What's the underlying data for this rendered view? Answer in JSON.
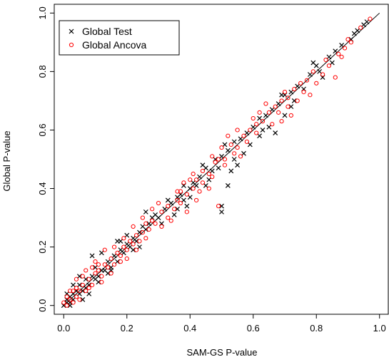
{
  "chart_data": {
    "type": "scatter",
    "title": "",
    "xlabel": "SAM-GS P-value",
    "ylabel": "Global P-value",
    "xlim": [
      -0.03,
      1.03
    ],
    "ylim": [
      -0.03,
      1.03
    ],
    "x_ticks": [
      "0.0",
      "0.2",
      "0.4",
      "0.6",
      "0.8",
      "1.0"
    ],
    "y_ticks": [
      "0.0",
      "0.2",
      "0.4",
      "0.6",
      "0.8",
      "1.0"
    ],
    "grid": false,
    "legend_position": "top-left",
    "reference_line": {
      "from": [
        0,
        0
      ],
      "to": [
        1,
        1
      ],
      "color": "#000000"
    },
    "series": [
      {
        "name": "Global Test",
        "marker": "x",
        "color": "#000000",
        "points": [
          [
            0.0,
            0.0
          ],
          [
            0.01,
            0.01
          ],
          [
            0.01,
            0.02
          ],
          [
            0.02,
            0.01
          ],
          [
            0.02,
            0.03
          ],
          [
            0.03,
            0.04
          ],
          [
            0.03,
            0.02
          ],
          [
            0.04,
            0.05
          ],
          [
            0.05,
            0.04
          ],
          [
            0.05,
            0.07
          ],
          [
            0.06,
            0.05
          ],
          [
            0.07,
            0.06
          ],
          [
            0.07,
            0.09
          ],
          [
            0.08,
            0.07
          ],
          [
            0.09,
            0.1
          ],
          [
            0.1,
            0.09
          ],
          [
            0.1,
            0.13
          ],
          [
            0.11,
            0.1
          ],
          [
            0.12,
            0.12
          ],
          [
            0.13,
            0.12
          ],
          [
            0.14,
            0.15
          ],
          [
            0.15,
            0.13
          ],
          [
            0.16,
            0.17
          ],
          [
            0.17,
            0.15
          ],
          [
            0.18,
            0.19
          ],
          [
            0.19,
            0.18
          ],
          [
            0.2,
            0.21
          ],
          [
            0.21,
            0.2
          ],
          [
            0.22,
            0.23
          ],
          [
            0.23,
            0.22
          ],
          [
            0.24,
            0.25
          ],
          [
            0.25,
            0.27
          ],
          [
            0.26,
            0.26
          ],
          [
            0.27,
            0.28
          ],
          [
            0.28,
            0.3
          ],
          [
            0.3,
            0.3
          ],
          [
            0.32,
            0.33
          ],
          [
            0.34,
            0.35
          ],
          [
            0.36,
            0.37
          ],
          [
            0.37,
            0.38
          ],
          [
            0.38,
            0.41
          ],
          [
            0.4,
            0.4
          ],
          [
            0.41,
            0.42
          ],
          [
            0.43,
            0.44
          ],
          [
            0.45,
            0.47
          ],
          [
            0.47,
            0.46
          ],
          [
            0.48,
            0.5
          ],
          [
            0.5,
            0.51
          ],
          [
            0.52,
            0.53
          ],
          [
            0.54,
            0.56
          ],
          [
            0.56,
            0.57
          ],
          [
            0.58,
            0.59
          ],
          [
            0.6,
            0.61
          ],
          [
            0.62,
            0.64
          ],
          [
            0.64,
            0.65
          ],
          [
            0.66,
            0.67
          ],
          [
            0.68,
            0.69
          ],
          [
            0.7,
            0.72
          ],
          [
            0.72,
            0.73
          ],
          [
            0.74,
            0.75
          ],
          [
            0.78,
            0.79
          ],
          [
            0.8,
            0.82
          ],
          [
            0.84,
            0.85
          ],
          [
            0.88,
            0.89
          ],
          [
            0.92,
            0.93
          ],
          [
            0.96,
            0.97
          ],
          [
            0.05,
            0.1
          ],
          [
            0.09,
            0.17
          ],
          [
            0.12,
            0.18
          ],
          [
            0.18,
            0.22
          ],
          [
            0.26,
            0.32
          ],
          [
            0.29,
            0.31
          ],
          [
            0.33,
            0.36
          ],
          [
            0.38,
            0.36
          ],
          [
            0.4,
            0.37
          ],
          [
            0.42,
            0.41
          ],
          [
            0.5,
            0.32
          ],
          [
            0.5,
            0.34
          ],
          [
            0.52,
            0.41
          ],
          [
            0.53,
            0.46
          ],
          [
            0.55,
            0.48
          ],
          [
            0.57,
            0.52
          ],
          [
            0.62,
            0.58
          ],
          [
            0.65,
            0.61
          ],
          [
            0.7,
            0.65
          ],
          [
            0.72,
            0.68
          ],
          [
            0.79,
            0.83
          ],
          [
            0.82,
            0.78
          ],
          [
            0.86,
            0.87
          ],
          [
            0.91,
            0.91
          ],
          [
            0.67,
            0.59
          ],
          [
            0.45,
            0.41
          ],
          [
            0.36,
            0.33
          ],
          [
            0.22,
            0.19
          ],
          [
            0.14,
            0.11
          ],
          [
            0.03,
            0.07
          ],
          [
            0.01,
            0.04
          ],
          [
            0.02,
            0.0
          ],
          [
            0.06,
            0.02
          ],
          [
            0.08,
            0.04
          ],
          [
            0.11,
            0.08
          ],
          [
            0.15,
            0.12
          ],
          [
            0.17,
            0.22
          ],
          [
            0.2,
            0.24
          ],
          [
            0.24,
            0.2
          ],
          [
            0.31,
            0.28
          ],
          [
            0.35,
            0.31
          ],
          [
            0.39,
            0.34
          ],
          [
            0.44,
            0.48
          ],
          [
            0.46,
            0.43
          ],
          [
            0.49,
            0.47
          ],
          [
            0.51,
            0.55
          ],
          [
            0.54,
            0.5
          ],
          [
            0.59,
            0.55
          ],
          [
            0.63,
            0.6
          ],
          [
            0.69,
            0.72
          ],
          [
            0.73,
            0.7
          ],
          [
            0.76,
            0.74
          ],
          [
            0.81,
            0.8
          ],
          [
            0.85,
            0.83
          ],
          [
            0.93,
            0.94
          ],
          [
            0.95,
            0.96
          ]
        ]
      },
      {
        "name": "Global Ancova",
        "marker": "circle",
        "color": "#ff0000",
        "points": [
          [
            0.0,
            0.01
          ],
          [
            0.01,
            0.0
          ],
          [
            0.01,
            0.03
          ],
          [
            0.02,
            0.02
          ],
          [
            0.03,
            0.05
          ],
          [
            0.04,
            0.03
          ],
          [
            0.04,
            0.06
          ],
          [
            0.05,
            0.05
          ],
          [
            0.06,
            0.07
          ],
          [
            0.07,
            0.05
          ],
          [
            0.08,
            0.09
          ],
          [
            0.09,
            0.07
          ],
          [
            0.1,
            0.11
          ],
          [
            0.11,
            0.12
          ],
          [
            0.12,
            0.1
          ],
          [
            0.13,
            0.14
          ],
          [
            0.14,
            0.13
          ],
          [
            0.15,
            0.16
          ],
          [
            0.16,
            0.14
          ],
          [
            0.17,
            0.18
          ],
          [
            0.18,
            0.17
          ],
          [
            0.19,
            0.2
          ],
          [
            0.2,
            0.19
          ],
          [
            0.21,
            0.22
          ],
          [
            0.22,
            0.21
          ],
          [
            0.23,
            0.24
          ],
          [
            0.25,
            0.25
          ],
          [
            0.26,
            0.28
          ],
          [
            0.27,
            0.26
          ],
          [
            0.28,
            0.29
          ],
          [
            0.29,
            0.28
          ],
          [
            0.31,
            0.32
          ],
          [
            0.33,
            0.34
          ],
          [
            0.35,
            0.33
          ],
          [
            0.36,
            0.36
          ],
          [
            0.37,
            0.39
          ],
          [
            0.39,
            0.38
          ],
          [
            0.41,
            0.4
          ],
          [
            0.42,
            0.43
          ],
          [
            0.44,
            0.42
          ],
          [
            0.46,
            0.45
          ],
          [
            0.48,
            0.49
          ],
          [
            0.49,
            0.5
          ],
          [
            0.51,
            0.5
          ],
          [
            0.53,
            0.55
          ],
          [
            0.55,
            0.54
          ],
          [
            0.57,
            0.58
          ],
          [
            0.59,
            0.6
          ],
          [
            0.61,
            0.62
          ],
          [
            0.63,
            0.63
          ],
          [
            0.65,
            0.66
          ],
          [
            0.67,
            0.68
          ],
          [
            0.69,
            0.7
          ],
          [
            0.71,
            0.71
          ],
          [
            0.73,
            0.74
          ],
          [
            0.75,
            0.76
          ],
          [
            0.77,
            0.77
          ],
          [
            0.79,
            0.8
          ],
          [
            0.83,
            0.84
          ],
          [
            0.87,
            0.86
          ],
          [
            0.9,
            0.91
          ],
          [
            0.94,
            0.95
          ],
          [
            0.97,
            0.98
          ],
          [
            0.02,
            0.05
          ],
          [
            0.04,
            0.09
          ],
          [
            0.07,
            0.12
          ],
          [
            0.1,
            0.15
          ],
          [
            0.13,
            0.19
          ],
          [
            0.16,
            0.2
          ],
          [
            0.19,
            0.23
          ],
          [
            0.22,
            0.27
          ],
          [
            0.25,
            0.3
          ],
          [
            0.28,
            0.33
          ],
          [
            0.3,
            0.35
          ],
          [
            0.33,
            0.3
          ],
          [
            0.36,
            0.39
          ],
          [
            0.38,
            0.42
          ],
          [
            0.41,
            0.45
          ],
          [
            0.44,
            0.46
          ],
          [
            0.47,
            0.51
          ],
          [
            0.5,
            0.54
          ],
          [
            0.52,
            0.58
          ],
          [
            0.55,
            0.6
          ],
          [
            0.58,
            0.56
          ],
          [
            0.6,
            0.64
          ],
          [
            0.62,
            0.66
          ],
          [
            0.64,
            0.69
          ],
          [
            0.66,
            0.62
          ],
          [
            0.68,
            0.66
          ],
          [
            0.7,
            0.73
          ],
          [
            0.72,
            0.65
          ],
          [
            0.74,
            0.7
          ],
          [
            0.78,
            0.72
          ],
          [
            0.8,
            0.76
          ],
          [
            0.84,
            0.82
          ],
          [
            0.86,
            0.78
          ],
          [
            0.88,
            0.85
          ],
          [
            0.49,
            0.34
          ],
          [
            0.42,
            0.36
          ],
          [
            0.46,
            0.4
          ],
          [
            0.54,
            0.52
          ],
          [
            0.39,
            0.32
          ],
          [
            0.31,
            0.27
          ],
          [
            0.24,
            0.22
          ],
          [
            0.18,
            0.15
          ],
          [
            0.12,
            0.08
          ],
          [
            0.09,
            0.13
          ],
          [
            0.06,
            0.1
          ],
          [
            0.03,
            0.01
          ],
          [
            0.05,
            0.02
          ],
          [
            0.08,
            0.06
          ],
          [
            0.11,
            0.14
          ],
          [
            0.15,
            0.11
          ],
          [
            0.2,
            0.16
          ],
          [
            0.23,
            0.19
          ],
          [
            0.26,
            0.23
          ],
          [
            0.34,
            0.29
          ],
          [
            0.37,
            0.35
          ],
          [
            0.4,
            0.43
          ],
          [
            0.43,
            0.39
          ],
          [
            0.47,
            0.44
          ],
          [
            0.51,
            0.48
          ],
          [
            0.56,
            0.51
          ],
          [
            0.61,
            0.59
          ],
          [
            0.69,
            0.63
          ],
          [
            0.71,
            0.68
          ],
          [
            0.76,
            0.73
          ],
          [
            0.82,
            0.79
          ],
          [
            0.89,
            0.88
          ],
          [
            0.91,
            0.9
          ]
        ]
      }
    ]
  }
}
